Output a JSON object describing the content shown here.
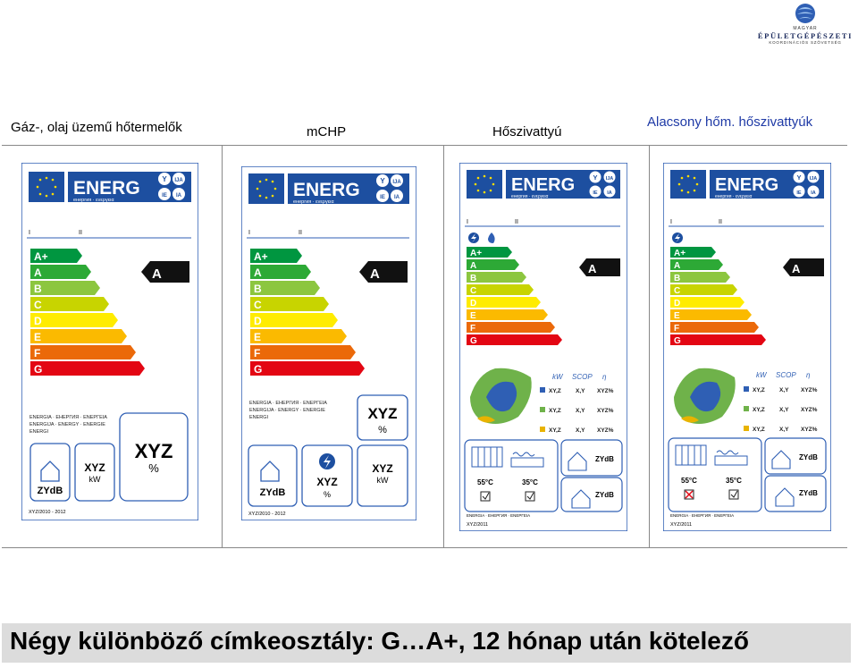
{
  "logo": {
    "line1": "MAGYAR",
    "line2": "ÉPÜLETGÉPÉSZETI",
    "line3": "KOORDINÁCIÓS SZÖVETSÉG"
  },
  "headings": [
    {
      "text": "Gáz-, olaj üzemű hőtermelők",
      "color": "#1a1a1a"
    },
    {
      "text": "mCHP",
      "color": "#1a1a1a"
    },
    {
      "text": "Hőszivattyú",
      "color": "#1a1a1a"
    },
    {
      "text": "Alacsony hőm. hőszivattyúk",
      "color": "#1f3aa6"
    }
  ],
  "common": {
    "energ": "ENERG",
    "energ_sub": "енергия · ενεργεια",
    "ija": [
      "Y",
      "IJA",
      "IE",
      "IA"
    ],
    "roman": [
      "I",
      "II"
    ],
    "classes": [
      "A+",
      "A",
      "B",
      "C",
      "D",
      "E",
      "F",
      "G"
    ],
    "class_colors": [
      "#009640",
      "#2da936",
      "#8cc63f",
      "#c8d400",
      "#ffec00",
      "#fbba00",
      "#eb6909",
      "#e30613"
    ],
    "rating": "A",
    "energia_text": [
      "ENERGIA · ЕНЕРГИЯ · ΕΝΕΡΓΕΙΑ",
      "ENERGIJA · ENERGY · ENERGIE",
      "ENERGI"
    ],
    "zydb": "ZYdB",
    "xyz": "XYZ",
    "kw": "kW",
    "pct": "%",
    "year": "XYZ/2010 - 2012",
    "year_hp": "XYZ/2011",
    "hp_cols": [
      "kW",
      "SCOP",
      "η"
    ],
    "hp_rows": [
      [
        "XY,Z",
        "X,Y",
        "XYZ%"
      ],
      [
        "XY,Z",
        "X,Y",
        "XYZ%"
      ],
      [
        "XY,Z",
        "X,Y",
        "XYZ%"
      ]
    ],
    "temps": [
      "55°C",
      "35°C"
    ]
  },
  "footer": {
    "text": "Négy különböző címkeosztály: G…A+,  12 hónap után kötelező"
  }
}
